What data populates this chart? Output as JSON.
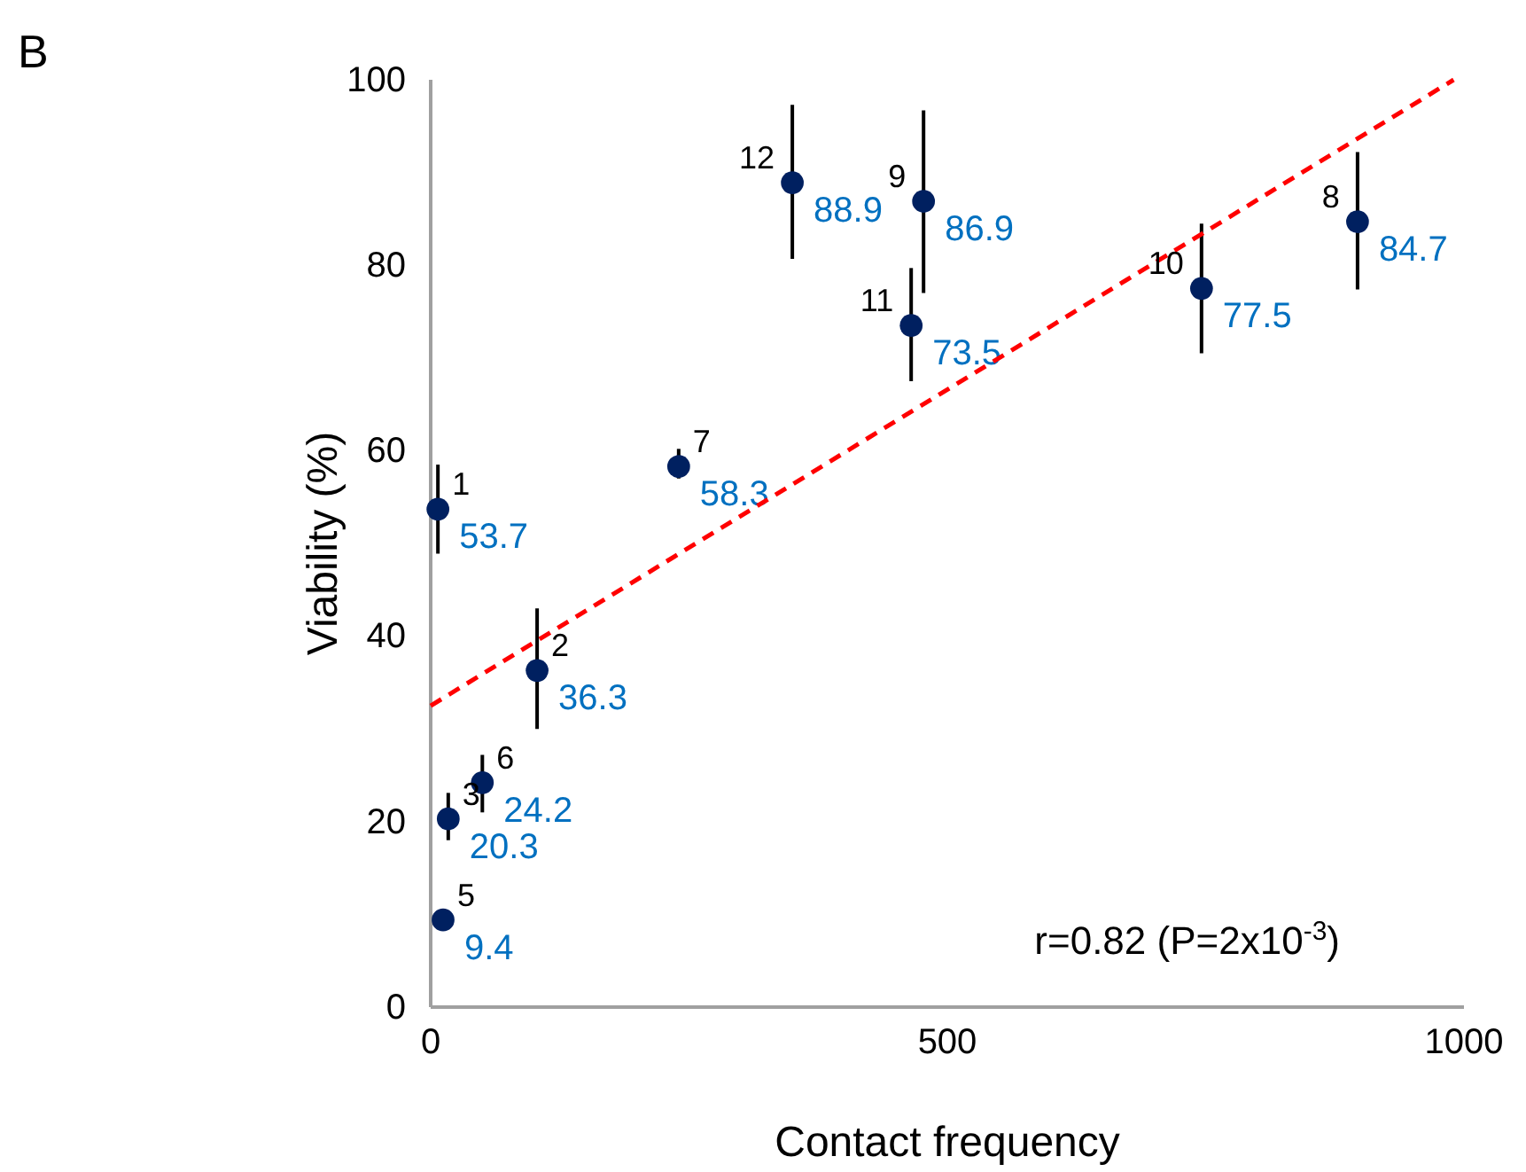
{
  "chart_data": {
    "type": "scatter",
    "xlabel": "Contact frequency",
    "ylabel": "Viability (%)",
    "xlim": [
      0,
      1000
    ],
    "xticks": [
      0,
      500,
      1000
    ],
    "ylim": [
      0,
      100
    ],
    "yticks": [
      0,
      20,
      40,
      60,
      80,
      100
    ],
    "grid": false,
    "series": [
      {
        "color": "#002060",
        "marker": "circle",
        "x": [
          7,
          103,
          17,
          12,
          50,
          240,
          897,
          477,
          746,
          465,
          350
        ],
        "values": [
          53.7,
          36.3,
          20.3,
          9.4,
          24.2,
          58.3,
          84.7,
          86.9,
          77.5,
          73.5,
          88.9
        ],
        "errors": [
          [
            48.9,
            58.5
          ],
          [
            30,
            43
          ],
          [
            18,
            23.1
          ],
          null,
          [
            21,
            27.2
          ],
          [
            57,
            60.2
          ],
          [
            77.4,
            92.2
          ],
          [
            77,
            96.7
          ],
          [
            70.5,
            84.5
          ],
          [
            67.5,
            79.7
          ],
          [
            80.7,
            97.3
          ]
        ],
        "value_labels": [
          "53.7",
          "36.3",
          "20.3",
          "9.4",
          "24.2",
          "58.3",
          "84.7",
          "86.9",
          "77.5",
          "73.5",
          "88.9"
        ]
      },
      {
        "type": "line",
        "color": "#ff0000",
        "line_style": "dashed",
        "marker": "none",
        "x": [
          0,
          990
        ],
        "values": [
          32.5,
          100
        ]
      }
    ],
    "annotations": [
      "B",
      "r=0.82 (P=2x10$^{-3}$)",
      {
        "text": "1",
        "x": 7,
        "y": 53.7
      },
      {
        "text": "2",
        "x": 103,
        "y": 36.3
      },
      {
        "text": "3",
        "x": 17,
        "y": 20.3
      },
      {
        "text": "5",
        "x": 12,
        "y": 9.4
      },
      {
        "text": "6",
        "x": 50,
        "y": 24.2
      },
      {
        "text": "7",
        "x": 240,
        "y": 58.3
      },
      {
        "text": "8",
        "x": 897,
        "y": 84.7
      },
      {
        "text": "9",
        "x": 477,
        "y": 86.9
      },
      {
        "text": "10",
        "x": 746,
        "y": 77.5
      },
      {
        "text": "11",
        "x": 465,
        "y": 73.5
      },
      {
        "text": "12",
        "x": 350,
        "y": 88.9
      }
    ]
  }
}
